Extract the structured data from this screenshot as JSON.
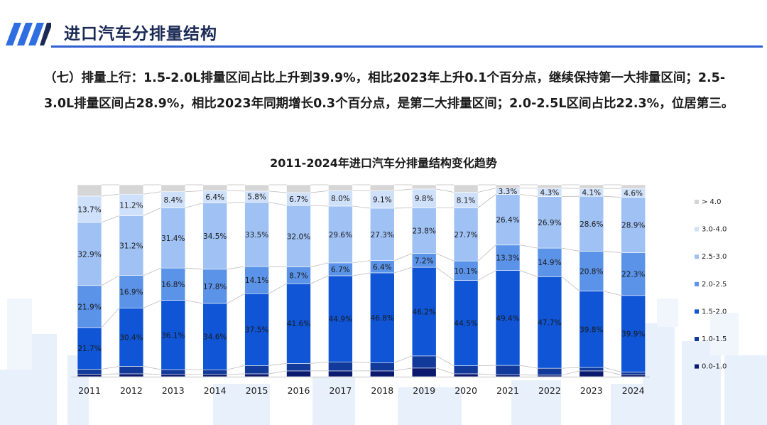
{
  "header": {
    "title": "进口汽车分排量结构"
  },
  "paragraph": {
    "text": "（七）排量上行：1.5-2.0L排量区间占比上升到39.9%，相比2023年上升0.1个百分点，继续保持第一大排量区间；2.5-3.0L排量区间占28.9%，相比2023年同期增长0.3个百分点，是第二大排量区间；2.0-2.5L区间占比22.3%，位居第三。"
  },
  "colors": {
    "header_text": "#1b2a55",
    "accent": "#2f5fd1",
    "series": [
      "#0b1a6e",
      "#123a9a",
      "#0f55d6",
      "#5b93e8",
      "#9fc1f4",
      "#cfe0fa",
      "#d6d6d6"
    ]
  },
  "chart_data": {
    "type": "bar",
    "stacked": true,
    "title": "2011-2024年进口汽车分排量结构变化趋势",
    "categories": [
      "2011",
      "2012",
      "2013",
      "2014",
      "2015",
      "2016",
      "2017",
      "2018",
      "2019",
      "2020",
      "2021",
      "2022",
      "2023",
      "2024"
    ],
    "series": [
      {
        "name": "0.0-1.0",
        "values": [
          1.3,
          1.5,
          1.2,
          1.2,
          1.5,
          3.0,
          3.0,
          3.0,
          4.5,
          1.5,
          0.9,
          0.8,
          3.0,
          1.0
        ]
      },
      {
        "name": "1.0-1.5",
        "values": [
          2.6,
          3.9,
          2.5,
          2.4,
          4.3,
          3.9,
          4.7,
          4.3,
          6.3,
          4.2,
          5.0,
          3.6,
          1.8,
          1.4
        ]
      },
      {
        "name": "1.5-2.0",
        "values": [
          21.7,
          30.4,
          36.1,
          34.6,
          37.5,
          41.6,
          44.9,
          46.8,
          46.2,
          44.5,
          49.4,
          47.7,
          39.8,
          39.9
        ]
      },
      {
        "name": "2.0-2.5",
        "values": [
          21.9,
          16.9,
          16.8,
          17.8,
          14.1,
          8.7,
          6.7,
          6.4,
          7.2,
          10.1,
          13.3,
          14.9,
          20.8,
          22.3
        ]
      },
      {
        "name": "2.5-3.0",
        "values": [
          32.9,
          31.2,
          31.4,
          34.5,
          33.5,
          32.0,
          29.6,
          27.3,
          23.8,
          27.7,
          26.4,
          26.9,
          28.6,
          28.9
        ]
      },
      {
        "name": "3.0-4.0",
        "values": [
          13.7,
          11.2,
          8.4,
          6.4,
          5.8,
          6.7,
          8.0,
          9.1,
          9.8,
          8.1,
          3.3,
          4.3,
          4.1,
          4.6
        ]
      },
      {
        "name": "> 4.0",
        "values": [
          5.9,
          4.9,
          3.6,
          3.1,
          3.3,
          4.1,
          3.1,
          3.1,
          2.2,
          3.9,
          1.7,
          1.8,
          1.9,
          1.9
        ]
      }
    ],
    "labeled_series": [
      "1.5-2.0",
      "2.0-2.5",
      "2.5-3.0",
      "3.0-4.0"
    ],
    "value_suffix": "%",
    "legend_position": "right",
    "grid": false
  }
}
